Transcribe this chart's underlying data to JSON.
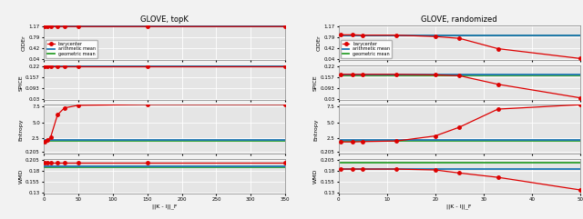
{
  "title_left": "GLOVE, topK",
  "title_right": "GLOVE, randomized",
  "xlabel": "||K - I||_F",
  "left": {
    "x": [
      1,
      5,
      10,
      20,
      30,
      50,
      150,
      350
    ],
    "cider_bary": [
      1.168,
      1.17,
      1.17,
      1.168,
      1.168,
      1.168,
      1.168,
      1.168
    ],
    "cider_arith": [
      1.168,
      1.168,
      1.168,
      1.168,
      1.168,
      1.168,
      1.168,
      1.168
    ],
    "cider_geo": [
      1.167,
      1.167,
      1.167,
      1.167,
      1.167,
      1.167,
      1.167,
      1.167
    ],
    "spice_bary": [
      0.219,
      0.219,
      0.219,
      0.219,
      0.219,
      0.219,
      0.219,
      0.219
    ],
    "spice_arith": [
      0.219,
      0.219,
      0.219,
      0.219,
      0.219,
      0.219,
      0.219,
      0.219
    ],
    "spice_geo": [
      0.218,
      0.218,
      0.218,
      0.218,
      0.218,
      0.218,
      0.218,
      0.218
    ],
    "entropy_bary": [
      1.85,
      2.1,
      2.6,
      6.2,
      7.3,
      7.7,
      7.85,
      7.85
    ],
    "entropy_arith": [
      2.15,
      2.15,
      2.15,
      2.15,
      2.15,
      2.15,
      2.15,
      2.15
    ],
    "entropy_geo": [
      2.05,
      2.05,
      2.05,
      2.05,
      2.05,
      2.05,
      2.05,
      2.05
    ],
    "wmd_bary": [
      0.198,
      0.198,
      0.198,
      0.198,
      0.198,
      0.198,
      0.198,
      0.198
    ],
    "wmd_arith": [
      0.191,
      0.191,
      0.191,
      0.191,
      0.191,
      0.191,
      0.191,
      0.191
    ],
    "wmd_geo": [
      0.189,
      0.189,
      0.189,
      0.189,
      0.189,
      0.189,
      0.189,
      0.189
    ],
    "cider_ylim": [
      0.04,
      1.17
    ],
    "spice_ylim": [
      0.03,
      0.22
    ],
    "entropy_ylim": [
      0.205,
      7.5
    ],
    "wmd_ylim": [
      0.13,
      0.205
    ],
    "cider_yticks": [
      0.04,
      0.42,
      0.79,
      1.17
    ],
    "spice_yticks": [
      0.03,
      0.093,
      0.157,
      0.22
    ],
    "entropy_yticks": [
      0.205,
      2.5,
      5.0,
      7.5
    ],
    "wmd_yticks": [
      0.13,
      0.155,
      0.18,
      0.205
    ],
    "xlim": [
      0,
      350
    ],
    "xticks": [
      0,
      50,
      100,
      150,
      200,
      250,
      300,
      350
    ]
  },
  "right": {
    "x": [
      0.5,
      3,
      5,
      12,
      20,
      25,
      33,
      50
    ],
    "cider_bary": [
      0.88,
      0.88,
      0.87,
      0.87,
      0.82,
      0.76,
      0.4,
      0.06
    ],
    "cider_arith": [
      0.87,
      0.87,
      0.87,
      0.87,
      0.87,
      0.87,
      0.87,
      0.87
    ],
    "cider_geo": [
      0.87,
      0.87,
      0.87,
      0.87,
      0.87,
      0.87,
      0.87,
      0.87
    ],
    "spice_bary": [
      0.173,
      0.173,
      0.173,
      0.173,
      0.17,
      0.165,
      0.115,
      0.036
    ],
    "spice_arith": [
      0.17,
      0.17,
      0.17,
      0.17,
      0.17,
      0.17,
      0.17,
      0.17
    ],
    "spice_geo": [
      0.169,
      0.169,
      0.169,
      0.169,
      0.169,
      0.169,
      0.169,
      0.169
    ],
    "entropy_bary": [
      1.85,
      1.85,
      1.9,
      2.0,
      2.8,
      4.2,
      7.1,
      7.8
    ],
    "entropy_arith": [
      2.15,
      2.15,
      2.15,
      2.15,
      2.15,
      2.15,
      2.15,
      2.15
    ],
    "entropy_geo": [
      2.05,
      2.05,
      2.05,
      2.05,
      2.05,
      2.05,
      2.05,
      2.05
    ],
    "wmd_bary": [
      0.184,
      0.184,
      0.184,
      0.184,
      0.182,
      0.175,
      0.165,
      0.136
    ],
    "wmd_arith": [
      0.184,
      0.184,
      0.184,
      0.184,
      0.184,
      0.184,
      0.184,
      0.184
    ],
    "wmd_geo": [
      0.199,
      0.199,
      0.199,
      0.199,
      0.199,
      0.199,
      0.199,
      0.199
    ],
    "cider_ylim": [
      0.04,
      1.17
    ],
    "spice_ylim": [
      0.03,
      0.22
    ],
    "entropy_ylim": [
      0.205,
      7.5
    ],
    "wmd_ylim": [
      0.13,
      0.205
    ],
    "cider_yticks": [
      0.04,
      0.42,
      0.79,
      1.17
    ],
    "spice_yticks": [
      0.03,
      0.093,
      0.157,
      0.22
    ],
    "entropy_yticks": [
      0.205,
      2.5,
      5.0,
      7.5
    ],
    "wmd_yticks": [
      0.13,
      0.155,
      0.18,
      0.205
    ],
    "xlim": [
      0,
      50
    ],
    "xticks": [
      0,
      10,
      20,
      30,
      40,
      50
    ]
  },
  "color_bary": "#dd0000",
  "color_arith": "#1f77b4",
  "color_geo": "#2ca02c",
  "marker_bary": "o",
  "linewidth": 0.9,
  "markersize": 2.5,
  "legend_labels": [
    "barycenter",
    "arithmetic mean",
    "geometric mean"
  ],
  "ylabels": [
    "CIDEr",
    "SPICE",
    "Entropy",
    "WMD"
  ],
  "bg_color": "#e5e5e5",
  "grid_color": "#ffffff",
  "fig_bg": "#f2f2f2"
}
